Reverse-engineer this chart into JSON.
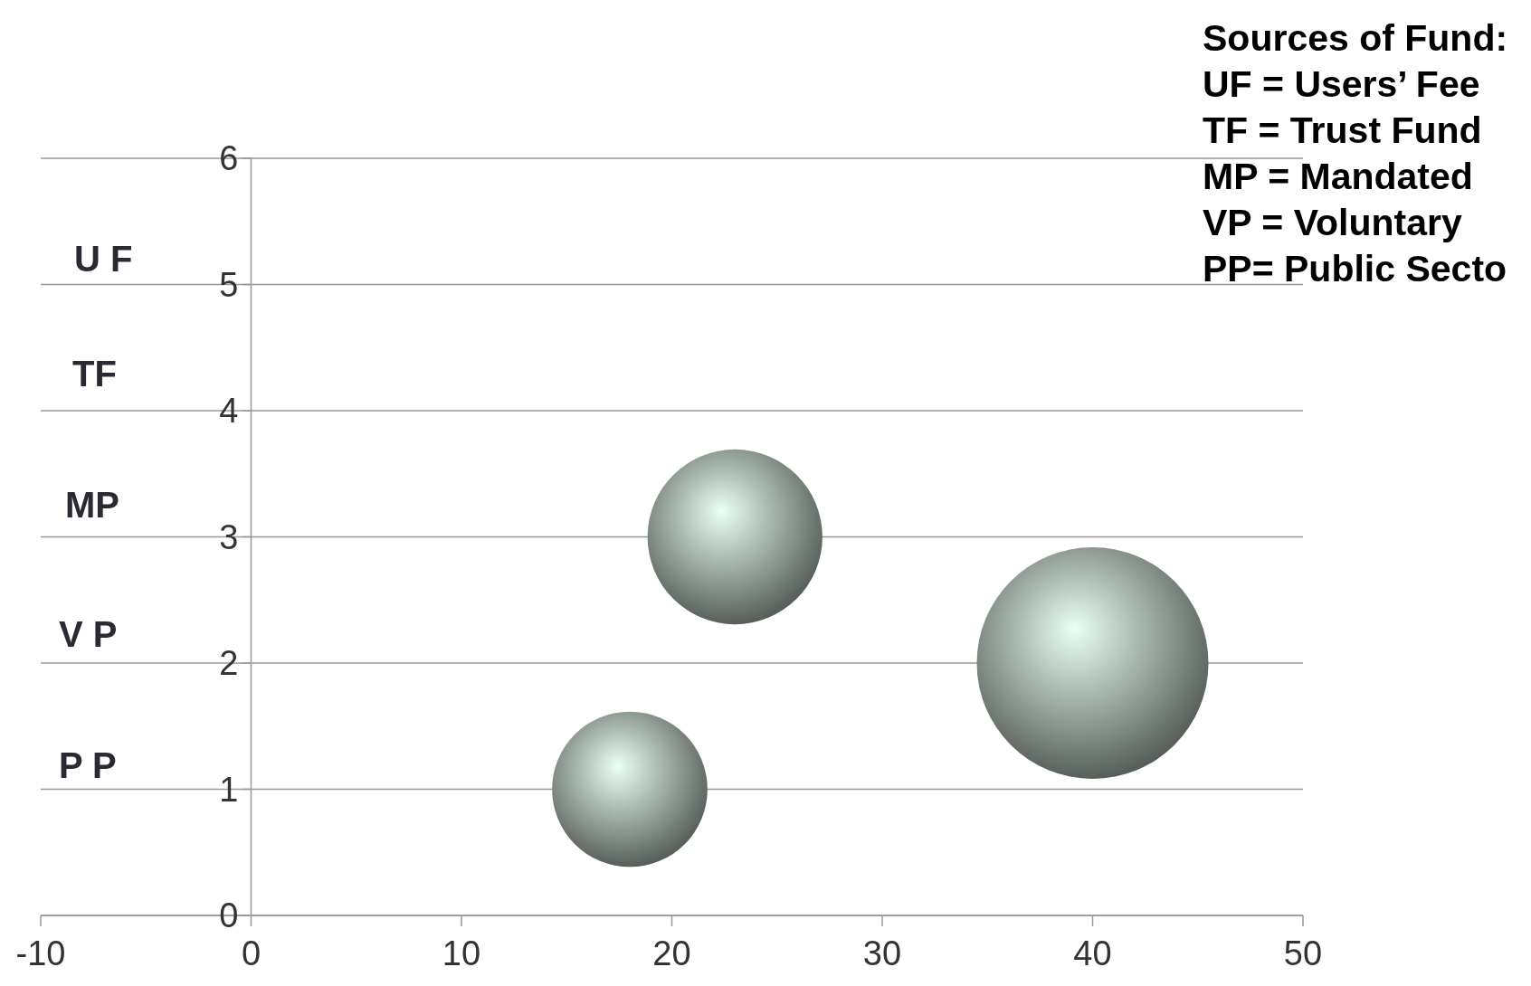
{
  "chart_data": {
    "type": "bubble",
    "x": [
      18,
      23,
      40
    ],
    "values": [
      1,
      3,
      2
    ],
    "sizes": [
      0.45,
      0.57,
      1
    ],
    "color": "#9aa89f",
    "xlim": [
      -10,
      50
    ],
    "xticks": [
      -10,
      0,
      10,
      20,
      30,
      40,
      50
    ],
    "ylim": [
      0,
      6
    ],
    "yticks": [
      0,
      1,
      2,
      3,
      4,
      5,
      6
    ],
    "grid": "y",
    "annotations": [
      "U F",
      "TF",
      "MP",
      "V P",
      "P P",
      "Sources of Fund:",
      "UF = Users’ Fee",
      "TF = Trust Fund",
      "MP = Mandated",
      "VP = Voluntary",
      "PP= Public Secto"
    ]
  }
}
